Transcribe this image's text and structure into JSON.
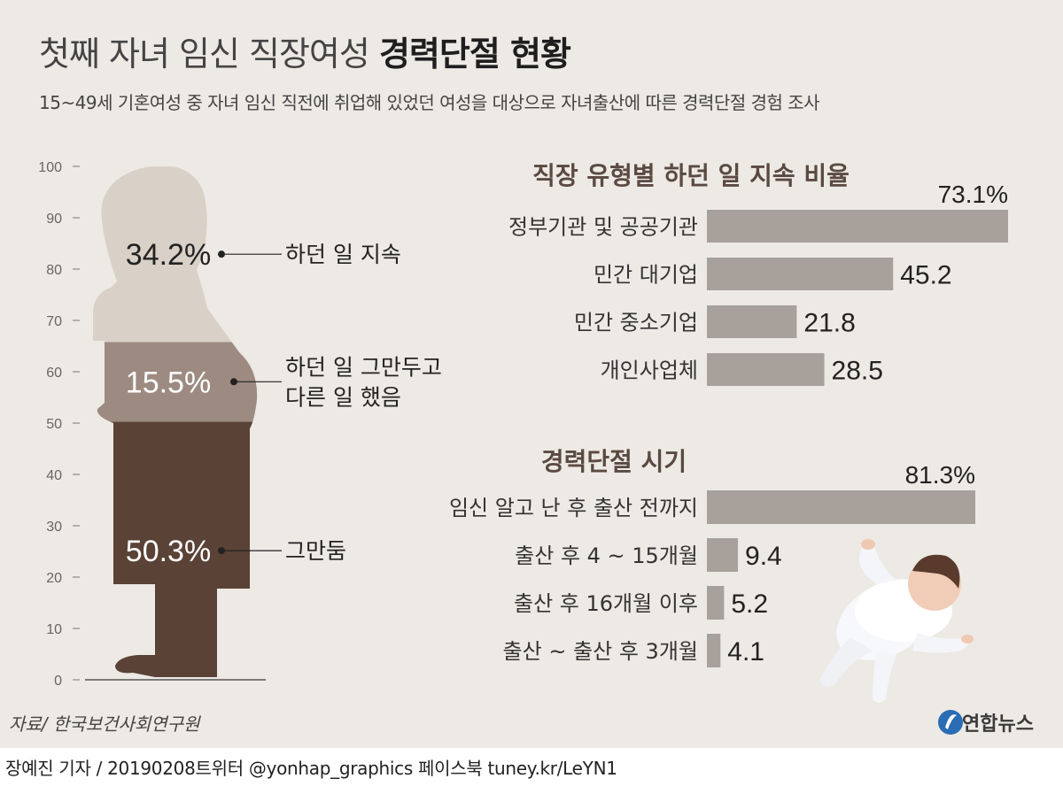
{
  "header": {
    "title_light": "첫째 자녀 임신 직장여성",
    "title_bold": "경력단절 현황",
    "subtitle": "15~49세 기혼여성 중 자녀 임신 직전에 취업해 있었던 여성을 대상으로 자녀출산에 따른 경력단절 경험 조사"
  },
  "chart_data": [
    {
      "type": "bar",
      "stacked": true,
      "yticks": [
        0,
        10,
        20,
        30,
        40,
        50,
        60,
        70,
        80,
        90,
        100
      ],
      "ylim": [
        0,
        100
      ],
      "series": [
        {
          "name": "그만둠",
          "value": 50.3,
          "label": "50.3%",
          "color": "#5a4236"
        },
        {
          "name": "하던 일 그만두고 다른 일 했음",
          "name_lines": [
            "하던 일 그만두고",
            "다른 일 했음"
          ],
          "value": 15.5,
          "label": "15.5%",
          "color": "#9d8b82"
        },
        {
          "name": "하던 일 지속",
          "value": 34.2,
          "label": "34.2%",
          "color": "#d9d1c7"
        }
      ]
    },
    {
      "type": "bar",
      "orientation": "horizontal",
      "title": "직장 유형별 하던 일 지속 비율",
      "categories": [
        "정부기관 및 공공기관",
        "민간 대기업",
        "민간 중소기업",
        "개인사업체"
      ],
      "values": [
        73.1,
        45.2,
        21.8,
        28.5
      ],
      "value_labels": [
        "73.1%",
        "45.2",
        "21.8",
        "28.5"
      ],
      "xlim": [
        0,
        73.1
      ],
      "bar_color": "#a8a19b"
    },
    {
      "type": "bar",
      "orientation": "horizontal",
      "title": "경력단절 시기",
      "categories": [
        "임신 알고 난 후 출산 전까지",
        "출산 후 4 ~ 15개월",
        "출산 후 16개월 이후",
        "출산 ~ 출산 후 3개월"
      ],
      "values": [
        81.3,
        9.4,
        5.2,
        4.1
      ],
      "value_labels": [
        "81.3%",
        "9.4",
        "5.2",
        "4.1"
      ],
      "xlim": [
        0,
        81.3
      ],
      "bar_color": "#a8a19b"
    }
  ],
  "source": "자료/ 한국보건사회연구원",
  "footer": "장예진 기자 / 20190208트위터 @yonhap_graphics  페이스북 tuney.kr/LeYN1",
  "logo": "연합뉴스"
}
